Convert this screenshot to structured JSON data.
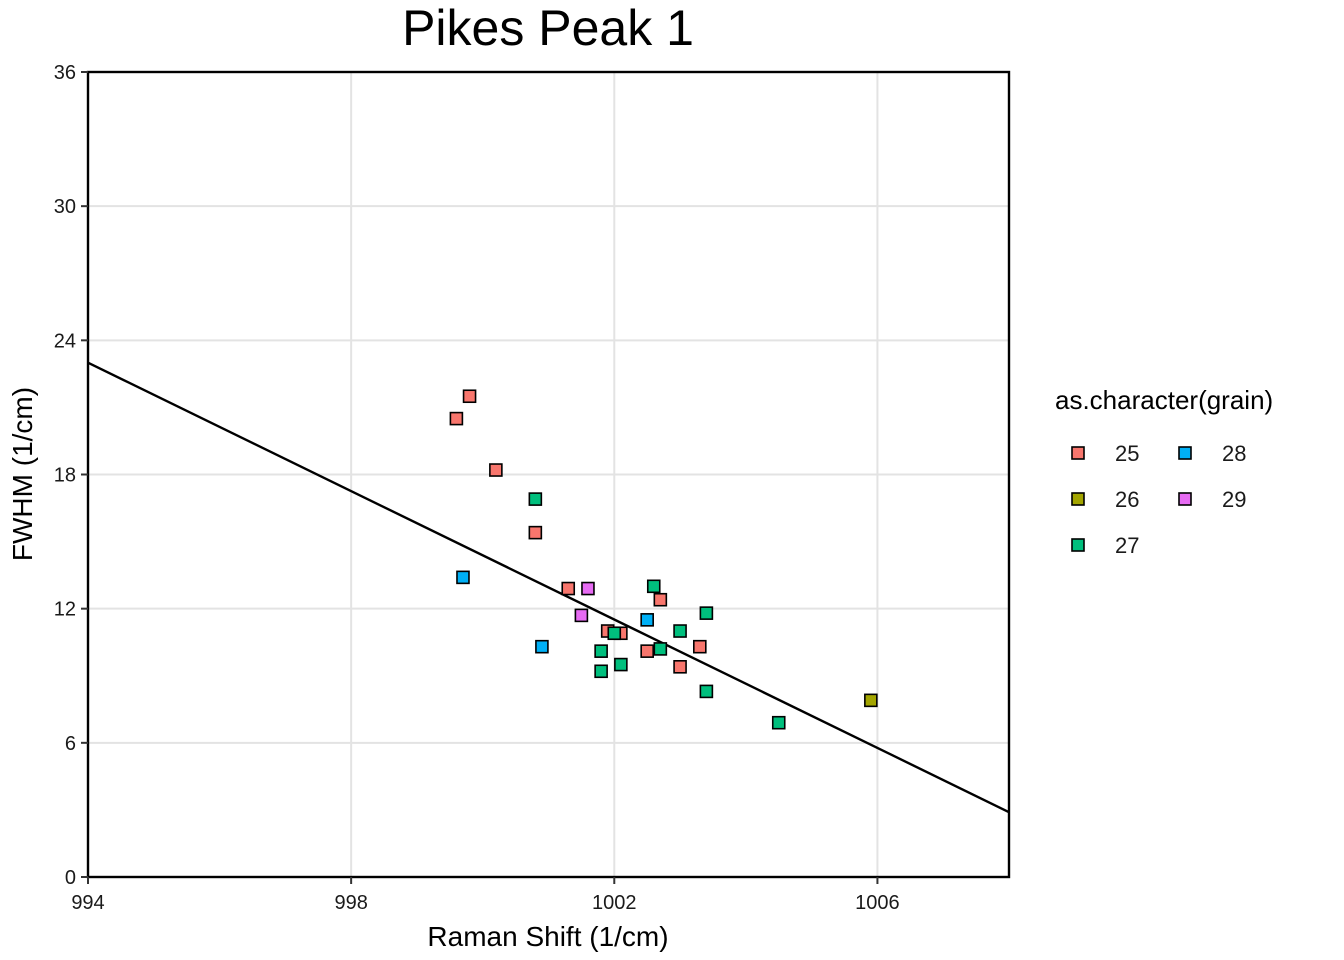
{
  "chart_data": {
    "type": "scatter",
    "title": "Pikes Peak 1",
    "xlabel": "Raman Shift (1/cm)",
    "ylabel": "FWHM (1/cm)",
    "xlim": [
      994,
      1008
    ],
    "ylim": [
      0,
      36
    ],
    "xticks": [
      994,
      998,
      1002,
      1006
    ],
    "yticks": [
      0,
      6,
      12,
      18,
      24,
      30,
      36
    ],
    "grid": true,
    "legend": {
      "title": "as.character(grain)",
      "position": "right",
      "entries": [
        "25",
        "26",
        "27",
        "28",
        "29"
      ]
    },
    "colors": {
      "25": "#F8766D",
      "26": "#A3A500",
      "27": "#00BF7D",
      "28": "#00B0F6",
      "29": "#E76BF3"
    },
    "series": [
      {
        "name": "25",
        "points": [
          {
            "x": 999.6,
            "y": 20.5
          },
          {
            "x": 999.8,
            "y": 21.5
          },
          {
            "x": 1000.2,
            "y": 18.2
          },
          {
            "x": 1000.8,
            "y": 15.4
          },
          {
            "x": 1001.3,
            "y": 12.9
          },
          {
            "x": 1001.9,
            "y": 11.0
          },
          {
            "x": 1002.1,
            "y": 10.9
          },
          {
            "x": 1002.5,
            "y": 10.1
          },
          {
            "x": 1002.7,
            "y": 12.4
          },
          {
            "x": 1003.0,
            "y": 9.4
          },
          {
            "x": 1003.3,
            "y": 10.3
          }
        ]
      },
      {
        "name": "26",
        "points": [
          {
            "x": 1005.9,
            "y": 7.9
          }
        ]
      },
      {
        "name": "27",
        "points": [
          {
            "x": 1000.8,
            "y": 16.9
          },
          {
            "x": 1001.8,
            "y": 10.1
          },
          {
            "x": 1001.8,
            "y": 9.2
          },
          {
            "x": 1002.0,
            "y": 10.9
          },
          {
            "x": 1002.1,
            "y": 9.5
          },
          {
            "x": 1002.6,
            "y": 13.0
          },
          {
            "x": 1002.7,
            "y": 10.2
          },
          {
            "x": 1003.0,
            "y": 11.0
          },
          {
            "x": 1003.4,
            "y": 11.8
          },
          {
            "x": 1003.4,
            "y": 8.3
          },
          {
            "x": 1004.5,
            "y": 6.9
          }
        ]
      },
      {
        "name": "28",
        "points": [
          {
            "x": 999.7,
            "y": 13.4
          },
          {
            "x": 1000.9,
            "y": 10.3
          },
          {
            "x": 1002.5,
            "y": 11.5
          }
        ]
      },
      {
        "name": "29",
        "points": [
          {
            "x": 1001.5,
            "y": 11.7
          },
          {
            "x": 1001.6,
            "y": 12.9
          }
        ]
      }
    ],
    "trendline": {
      "type": "linear",
      "points": [
        {
          "x": 994,
          "y": 23.0
        },
        {
          "x": 1008,
          "y": 2.9
        }
      ]
    }
  }
}
